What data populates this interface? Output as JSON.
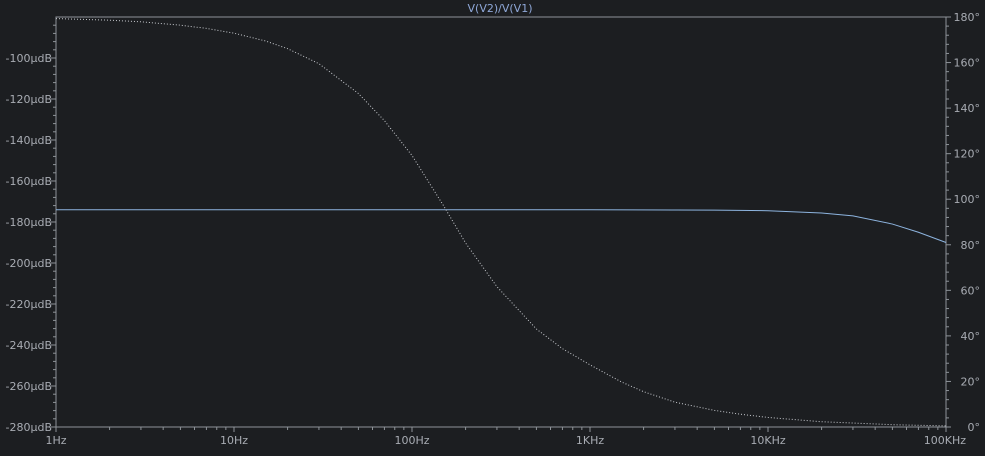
{
  "chart_data": {
    "type": "line",
    "title": "V(V2)/V(V1)",
    "x_scale": "log",
    "xlim": [
      1,
      100000
    ],
    "x_ticks": [
      1,
      10,
      100,
      1000,
      10000,
      100000
    ],
    "x_tick_labels": [
      "1Hz",
      "10Hz",
      "100Hz",
      "1KHz",
      "10KHz",
      "100KHz"
    ],
    "y_left_unit": "µdB",
    "ylim_left": [
      -280,
      -80
    ],
    "y_left_ticks": [
      -100,
      -120,
      -140,
      -160,
      -180,
      -200,
      -220,
      -240,
      -260,
      -280
    ],
    "y_left_tick_labels": [
      "-100µdB",
      "-120µdB",
      "-140µdB",
      "-160µdB",
      "-180µdB",
      "-200µdB",
      "-220µdB",
      "-240µdB",
      "-260µdB",
      "-280µdB"
    ],
    "y_right_unit": "°",
    "ylim_right": [
      0,
      180
    ],
    "y_right_ticks": [
      180,
      160,
      140,
      120,
      100,
      80,
      60,
      40,
      20,
      0
    ],
    "y_right_tick_labels": [
      "180°",
      "160°",
      "140°",
      "120°",
      "100°",
      "80°",
      "60°",
      "40°",
      "20°",
      "0°"
    ],
    "grid": false,
    "series": [
      {
        "axis": "left",
        "style": "solid",
        "color": "#8db4df",
        "x": [
          1,
          10,
          100,
          1000,
          5000,
          10000,
          20000,
          30000,
          50000,
          70000,
          100000
        ],
        "y": [
          -174,
          -174,
          -174,
          -174,
          -174.2,
          -174.5,
          -175.6,
          -177,
          -181,
          -185,
          -190
        ]
      },
      {
        "axis": "right",
        "style": "dotted",
        "color": "#c9ccd1",
        "x": [
          1,
          2,
          3,
          5,
          7,
          10,
          15,
          20,
          30,
          50,
          70,
          100,
          150,
          200,
          300,
          500,
          700,
          1000,
          1500,
          2000,
          3000,
          5000,
          7000,
          10000,
          20000,
          50000,
          100000
        ],
        "y": [
          179.3,
          178.6,
          177.9,
          176.4,
          175.0,
          172.9,
          169.5,
          166.1,
          159.5,
          146.4,
          134.5,
          119.2,
          97.3,
          80.8,
          61.6,
          43.0,
          34.4,
          27.3,
          19.8,
          15.5,
          10.9,
          7.3,
          5.6,
          4.2,
          2.3,
          1.0,
          0.5
        ]
      }
    ]
  }
}
